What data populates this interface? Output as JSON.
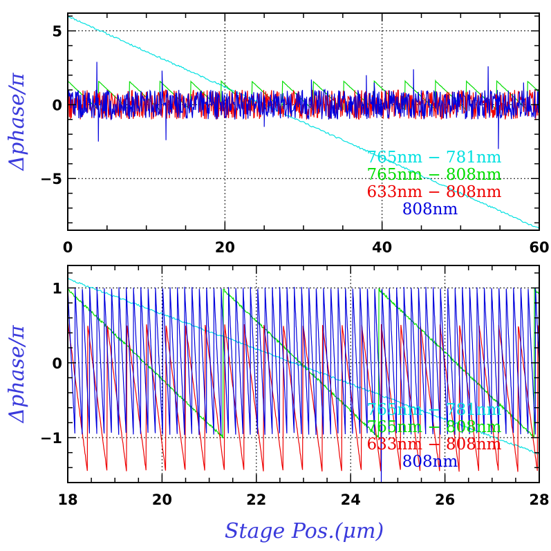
{
  "figure": {
    "xlabel": "Stage Pos.(μm)",
    "xlabel_color": "#3a3adc"
  },
  "chart_data": [
    {
      "type": "line",
      "ylabel": "Δphase/π",
      "ylabel_color": "#3a3adc",
      "xlim": [
        0,
        60
      ],
      "ylim": [
        -8.5,
        6.2
      ],
      "xticks": [
        0,
        20,
        40,
        60
      ],
      "xtick_labels": [
        "0",
        "20",
        "40",
        "60"
      ],
      "yticks": [
        -5,
        0,
        5
      ],
      "ytick_labels": [
        "−5",
        "0",
        "5"
      ],
      "grid": true,
      "legend_position": "bottom-right",
      "series": [
        {
          "name": "765nm − 781nm",
          "color": "#00e0e0",
          "kind": "linear",
          "x": [
            0,
            60
          ],
          "y": [
            6.0,
            -8.4
          ]
        },
        {
          "name": "765nm − 808nm",
          "color": "#00dd00",
          "kind": "sawtooth",
          "x_start": 0,
          "x_end": 60,
          "y_start": 1.6,
          "period": 3.9,
          "slope": -0.5
        },
        {
          "name": "633nm − 808nm",
          "color": "#ee0000",
          "kind": "noise",
          "x_start": 0,
          "x_end": 60,
          "amplitude": 1.0
        },
        {
          "name": "808nm",
          "color": "#0000dd",
          "kind": "noise",
          "x_start": 0,
          "x_end": 60,
          "amplitude": 1.0,
          "spikes": [
            [
              3.7,
              2.9
            ],
            [
              3.9,
              -2.5
            ],
            [
              12.0,
              2.3
            ],
            [
              12.5,
              -2.4
            ],
            [
              25.0,
              -1.5
            ],
            [
              31.0,
              1.7
            ],
            [
              38.0,
              2.0
            ],
            [
              39.0,
              1.5
            ],
            [
              44.0,
              2.4
            ],
            [
              53.5,
              2.6
            ],
            [
              54.8,
              -3.0
            ],
            [
              58.0,
              1.5
            ]
          ]
        }
      ]
    },
    {
      "type": "line",
      "ylabel": "Δphase/π",
      "ylabel_color": "#3a3adc",
      "xlim": [
        18,
        28
      ],
      "ylim": [
        -1.6,
        1.3
      ],
      "xticks": [
        18,
        20,
        22,
        24,
        26,
        28
      ],
      "xtick_labels": [
        "18",
        "20",
        "22",
        "24",
        "26",
        "28"
      ],
      "yticks": [
        -1,
        0,
        1
      ],
      "ytick_labels": [
        "−1",
        "0",
        "1"
      ],
      "grid": true,
      "legend_position": "bottom-right",
      "series": [
        {
          "name": "765nm − 781nm",
          "color": "#00e0e0",
          "kind": "linear",
          "x": [
            18,
            28
          ],
          "y": [
            1.12,
            -1.22
          ]
        },
        {
          "name": "765nm − 808nm",
          "color": "#00dd00",
          "kind": "sawtooth",
          "x_start": 18,
          "x_end": 28,
          "y_start": 0.98,
          "period": 3.3,
          "slope": -0.6
        },
        {
          "name": "633nm − 808nm",
          "color": "#ee0000",
          "kind": "sawtooth",
          "x_start": 18,
          "x_end": 28,
          "y_start": 0.55,
          "period": 0.415,
          "slope": -4.8
        },
        {
          "name": "808nm",
          "color": "#0000dd",
          "kind": "sawtooth",
          "x_start": 18,
          "x_end": 28,
          "y_start": 1.0,
          "period": 0.155,
          "slope": -12.9,
          "dips": [
            [
              24.65,
              -1.6
            ]
          ]
        }
      ]
    }
  ]
}
